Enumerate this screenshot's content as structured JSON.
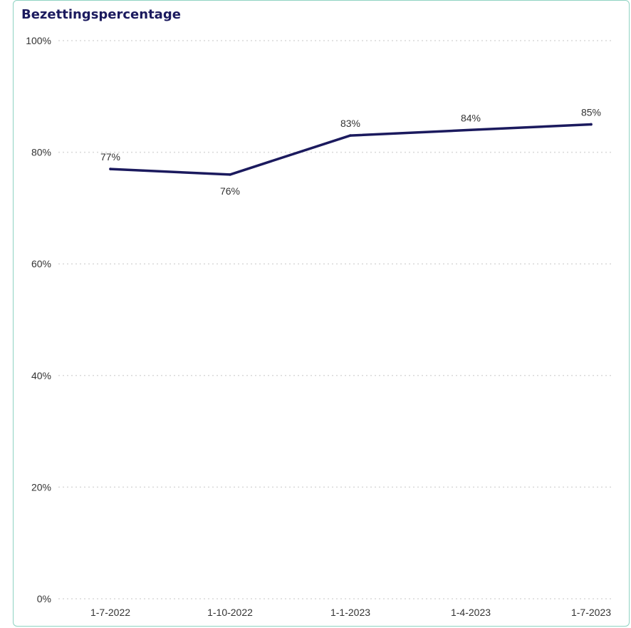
{
  "chart_data": {
    "type": "line",
    "title": "Bezettingspercentage",
    "categories": [
      "1-7-2022",
      "1-10-2022",
      "1-1-2023",
      "1-4-2023",
      "1-7-2023"
    ],
    "series": [
      {
        "values": [
          77,
          76,
          83,
          84,
          85
        ]
      }
    ],
    "data_labels": [
      "77%",
      "76%",
      "83%",
      "84%",
      "85%"
    ],
    "y_ticks": [
      {
        "value": 0,
        "label": "0%"
      },
      {
        "value": 20,
        "label": "20%"
      },
      {
        "value": 40,
        "label": "40%"
      },
      {
        "value": 60,
        "label": "60%"
      },
      {
        "value": 80,
        "label": "80%"
      },
      {
        "value": 100,
        "label": "100%"
      }
    ],
    "ylim": [
      0,
      100
    ],
    "grid": true,
    "colors": {
      "line": "#1b1a5e",
      "grid": "#d9d9d9",
      "title": "#1b1a5e",
      "border": "#8fd3c2"
    }
  }
}
